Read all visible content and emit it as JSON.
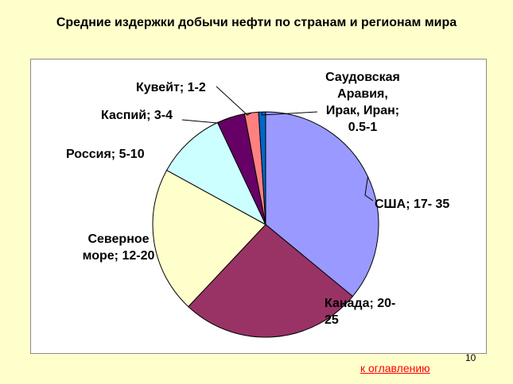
{
  "slide": {
    "title": "Средние издержки добычи нефти по странам и регионам мира",
    "page_number": "10",
    "toc_link": "к оглавлению"
  },
  "chart_data": {
    "type": "pie",
    "title": "Средние издержки добычи нефти по странам и регионам мира",
    "slices": [
      {
        "name": "США",
        "range": "17- 35",
        "label_lines": [
          "США; 17- 35"
        ],
        "value": 36,
        "color": "#9999ff"
      },
      {
        "name": "Канада",
        "range": "20-25",
        "label_lines": [
          "Канада; 20-",
          "25"
        ],
        "value": 26,
        "color": "#993366"
      },
      {
        "name": "Северное море",
        "range": "12-20",
        "label_lines": [
          "Северное",
          "море; 12-20"
        ],
        "value": 21,
        "color": "#ffffcc"
      },
      {
        "name": "Россия",
        "range": "5-10",
        "label_lines": [
          "Россия; 5-10"
        ],
        "value": 10,
        "color": "#ccffff"
      },
      {
        "name": "Каспий",
        "range": "3-4",
        "label_lines": [
          "Каспий; 3-4"
        ],
        "value": 4,
        "color": "#660066"
      },
      {
        "name": "Кувейт",
        "range": "1-2",
        "label_lines": [
          "Кувейт; 1-2"
        ],
        "value": 2,
        "color": "#ff8080"
      },
      {
        "name": "Саудовская Аравия, Ирак, Иран",
        "range": "0.5-1",
        "label_lines": [
          "Саудовская",
          "Аравия,",
          "Ирак, Иран;",
          "0.5-1"
        ],
        "value": 1,
        "color": "#0066cc"
      }
    ]
  }
}
